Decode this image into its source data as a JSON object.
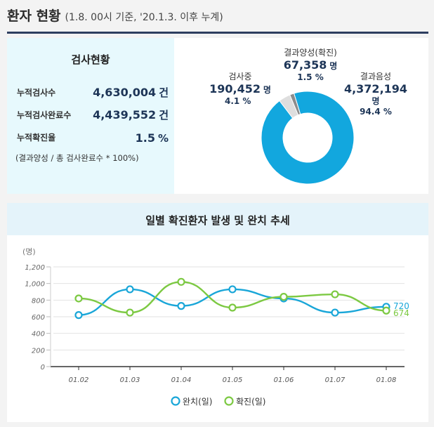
{
  "header": {
    "title": "환자 현황",
    "subtitle": "(1.8. 00시 기준, '20.1.3. 이후 누계)"
  },
  "stats": {
    "title": "검사현황",
    "rows": [
      {
        "label": "누적검사수",
        "value": "4,630,004",
        "unit": "건"
      },
      {
        "label": "누적검사완료수",
        "value": "4,439,552",
        "unit": "건"
      },
      {
        "label": "누적확진율",
        "value": "1.5",
        "unit": "%"
      }
    ],
    "note": "(결과양성 / 총 검사완료수 * 100%)"
  },
  "donut": {
    "segments": [
      {
        "name": "결과음성",
        "count": "4,372,194",
        "unit": "명",
        "pct_label": "94.4 %",
        "pct": 94.4,
        "color": "#12a7de"
      },
      {
        "name": "검사중",
        "count": "190,452",
        "unit": "명",
        "pct_label": "4.1 %",
        "pct": 4.1,
        "color": "#dedede"
      },
      {
        "name": "결과양성(확진)",
        "count": "67,358",
        "unit": "명",
        "pct_label": "1.5 %",
        "pct": 1.5,
        "color": "#8c8c8c"
      }
    ]
  },
  "chart_title": "일별 확진환자 발생 및 완치 추세",
  "chart_data": {
    "type": "line",
    "title": "일별 확진환자 발생 및 완치 추세",
    "ylabel": "(명)",
    "ylim": [
      0,
      1200
    ],
    "yticks": [
      "0",
      "200",
      "400",
      "600",
      "800",
      "1,000",
      "1,200"
    ],
    "categories": [
      "01.02",
      "01.03",
      "01.04",
      "01.05",
      "01.06",
      "01.07",
      "01.08"
    ],
    "grid": true,
    "legend_position": "bottom",
    "series": [
      {
        "name": "완치(일)",
        "color": "#19a6d8",
        "values": [
          620,
          930,
          730,
          930,
          820,
          650,
          720
        ],
        "end_label": "720"
      },
      {
        "name": "확진(일)",
        "color": "#7cc942",
        "values": [
          820,
          650,
          1020,
          710,
          840,
          870,
          674
        ],
        "end_label": "674"
      }
    ]
  }
}
